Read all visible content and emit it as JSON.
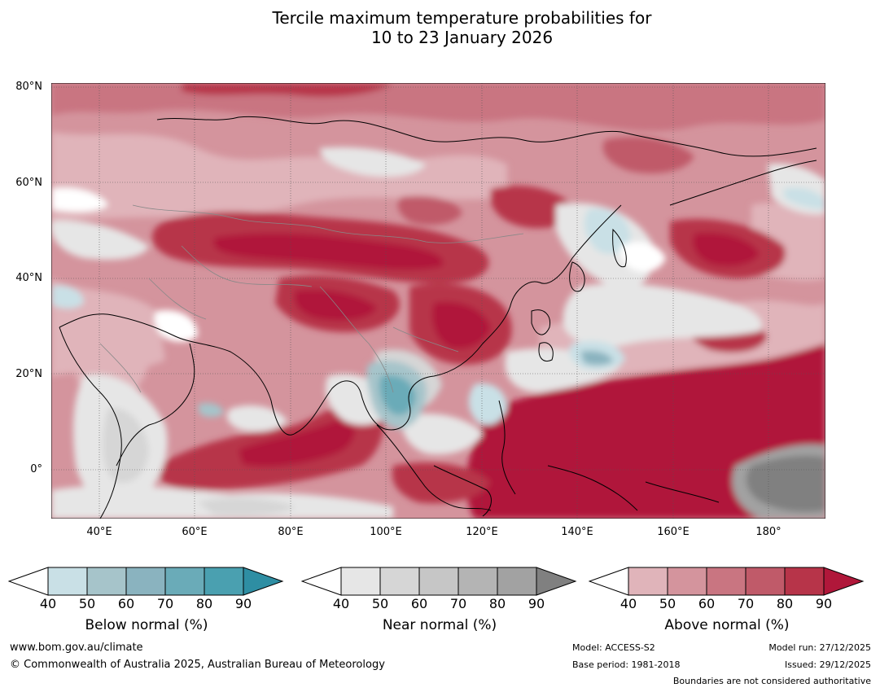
{
  "title": {
    "line1": "Tercile maximum temperature probabilities for",
    "line2": "10 to 23 January 2026"
  },
  "map": {
    "lat_labels": [
      "80°N",
      "60°N",
      "40°N",
      "20°N",
      "0°"
    ],
    "lon_labels": [
      "40°E",
      "60°E",
      "80°E",
      "100°E",
      "120°E",
      "140°E",
      "160°E",
      "180°"
    ],
    "extent": {
      "lon": [
        30,
        192
      ],
      "lat": [
        -10,
        81
      ]
    }
  },
  "legends": [
    {
      "title": "Below normal (%)",
      "ticks": [
        "40",
        "50",
        "60",
        "70",
        "80",
        "90"
      ],
      "colors": [
        "#c9e0e6",
        "#a6c4ca",
        "#8ab3bf",
        "#6aabb8",
        "#4aa0b0",
        "#2e8ea3"
      ]
    },
    {
      "title": "Near normal (%)",
      "ticks": [
        "40",
        "50",
        "60",
        "70",
        "80",
        "90"
      ],
      "colors": [
        "#e6e6e6",
        "#d6d6d6",
        "#c6c6c6",
        "#b4b4b4",
        "#a2a2a2",
        "#808080"
      ]
    },
    {
      "title": "Above normal (%)",
      "ticks": [
        "40",
        "50",
        "60",
        "70",
        "80",
        "90"
      ],
      "colors": [
        "#e0b4ba",
        "#d4949d",
        "#c97581",
        "#c05a69",
        "#b73449",
        "#b0173a"
      ]
    }
  ],
  "footer": {
    "website": "www.bom.gov.au/climate",
    "copyright": "© Commonwealth of Australia 2025, Australian Bureau of Meteorology",
    "model": "Model: ACCESS-S2",
    "base_period": "Base period: 1981-2018",
    "model_run": "Model run: 27/12/2025",
    "issued": "Issued: 29/12/2025",
    "disclaimer": "Boundaries are not considered authoritative"
  }
}
